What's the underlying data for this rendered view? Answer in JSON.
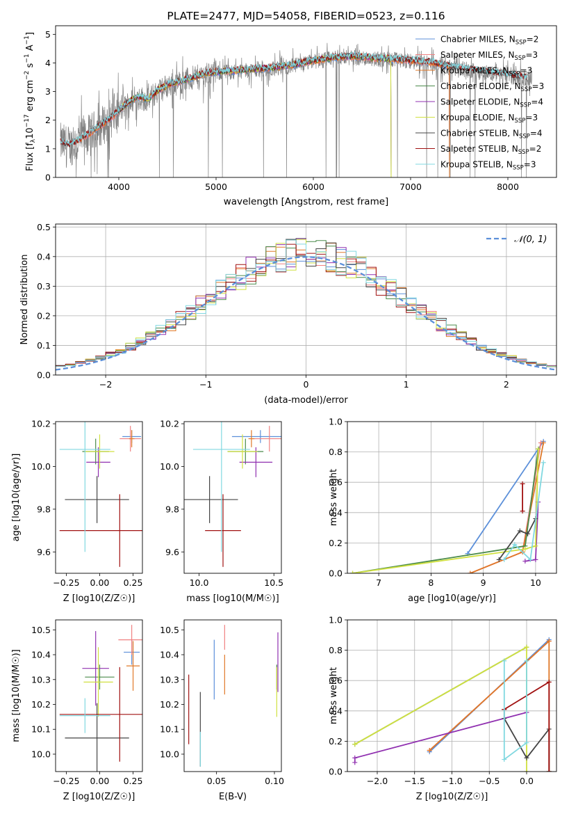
{
  "colors": {
    "chabrier_miles": "#5b8fd9",
    "salpeter_miles": "#f08080",
    "kroupa_miles": "#e07828",
    "chabrier_elodie": "#4a8a4a",
    "salpeter_elodie": "#9030b0",
    "kroupa_elodie": "#d0e040",
    "chabrier_stelib": "#444444",
    "salpeter_stelib": "#a01010",
    "kroupa_stelib": "#80d8e0",
    "spectrum": "#808080",
    "normal": "#5b8fd9"
  },
  "chart_data": [
    {
      "id": "spectrum",
      "type": "line",
      "title": "PLATE=2477, MJD=54058, FIBERID=0523, z=0.116",
      "xlabel": "wavelength [Angstrom, rest frame]",
      "ylabel": "Flux [f_λ 10^-17 erg cm^-2 s^-1 A^-1]",
      "xlim": [
        3350,
        8500
      ],
      "ylim": [
        0,
        5.3
      ],
      "xticks": [
        "4000",
        "5000",
        "6000",
        "7000",
        "8000"
      ],
      "yticks": [
        "0",
        "1",
        "2",
        "3",
        "4",
        "5"
      ],
      "continuum": {
        "x": [
          3400,
          3500,
          3600,
          3700,
          3800,
          3900,
          4000,
          4100,
          4200,
          4300,
          4400,
          4500,
          4600,
          4700,
          4800,
          4900,
          5000,
          5200,
          5400,
          5600,
          5800,
          6000,
          6200,
          6400,
          6600,
          6800,
          7000,
          7200,
          7400,
          7600,
          7800,
          8000,
          8200
        ],
        "y": [
          1.2,
          1.1,
          1.3,
          1.5,
          1.75,
          2.0,
          2.3,
          2.6,
          2.8,
          2.7,
          3.0,
          3.2,
          3.3,
          3.4,
          3.5,
          3.6,
          3.65,
          3.7,
          3.75,
          3.8,
          3.9,
          4.05,
          4.15,
          4.2,
          4.15,
          4.1,
          4.05,
          4.0,
          3.85,
          3.75,
          3.65,
          3.55,
          3.45
        ]
      },
      "legend": [
        {
          "key": "chabrier_miles",
          "label": "Chabrier MILES, N",
          "sub": "SSP",
          "suffix": "=2"
        },
        {
          "key": "salpeter_miles",
          "label": "Salpeter MILES, N",
          "sub": "SSP",
          "suffix": "=3"
        },
        {
          "key": "kroupa_miles",
          "label": "Kroupa MILES, N",
          "sub": "SSP",
          "suffix": "=3"
        },
        {
          "key": "chabrier_elodie",
          "label": "Chabrier ELODIE, N",
          "sub": "SSP",
          "suffix": "=3"
        },
        {
          "key": "salpeter_elodie",
          "label": "Salpeter ELODIE, N",
          "sub": "SSP",
          "suffix": "=4"
        },
        {
          "key": "kroupa_elodie",
          "label": "Kroupa ELODIE, N",
          "sub": "SSP",
          "suffix": "=3"
        },
        {
          "key": "chabrier_stelib",
          "label": "Chabrier STELIB, N",
          "sub": "SSP",
          "suffix": "=4"
        },
        {
          "key": "salpeter_stelib",
          "label": "Salpeter STELIB, N",
          "sub": "SSP",
          "suffix": "=2"
        },
        {
          "key": "kroupa_stelib",
          "label": "Kroupa STELIB, N",
          "sub": "SSP",
          "suffix": "=3"
        }
      ]
    },
    {
      "id": "residuals",
      "type": "line",
      "xlabel": "(data-model)/error",
      "ylabel": "Normed distribution",
      "xlim": [
        -2.5,
        2.5
      ],
      "ylim": [
        0,
        0.51
      ],
      "xticks": [
        "−2",
        "−1",
        "0",
        "1",
        "2"
      ],
      "yticks": [
        "0.0",
        "0.1",
        "0.2",
        "0.3",
        "0.4",
        "0.5"
      ],
      "legend": "𝒩(0, 1)",
      "grid": true
    },
    {
      "id": "age_vs_Z",
      "type": "scatter",
      "xlabel": "Z [log10(Z/Z☉)]",
      "ylabel": "age  [log10(age/yr)]",
      "xlim": [
        -0.33,
        0.32
      ],
      "ylim": [
        9.5,
        10.21
      ],
      "xticks": [
        "−0.25",
        "0.00",
        "0.25"
      ],
      "yticks": [
        "9.6",
        "9.8",
        "10.0",
        "10.2"
      ],
      "points": [
        {
          "key": "chabrier_miles",
          "x": 0.24,
          "y": 10.14,
          "xerr": 0.07,
          "yerr": 0.03
        },
        {
          "key": "salpeter_miles",
          "x": 0.23,
          "y": 10.13,
          "xerr": 0.08,
          "yerr": 0.06
        },
        {
          "key": "kroupa_miles",
          "x": 0.24,
          "y": 10.13,
          "xerr": 0.02,
          "yerr": 0.04
        },
        {
          "key": "chabrier_elodie",
          "x": -0.03,
          "y": 10.07,
          "xerr": 0.1,
          "yerr": 0.06
        },
        {
          "key": "salpeter_elodie",
          "x": -0.01,
          "y": 10.02,
          "xerr": 0.09,
          "yerr": 0.07
        },
        {
          "key": "kroupa_elodie",
          "x": 0.0,
          "y": 10.07,
          "xerr": 0.11,
          "yerr": 0.08
        },
        {
          "key": "chabrier_stelib",
          "x": -0.02,
          "y": 9.845,
          "xerr": 0.24,
          "yerr": 0.11
        },
        {
          "key": "salpeter_stelib",
          "x": 0.15,
          "y": 9.7,
          "xerr": 0.45,
          "yerr": 0.17
        },
        {
          "key": "kroupa_stelib",
          "x": -0.11,
          "y": 10.08,
          "xerr": 0.19,
          "yerr": 0.48
        }
      ]
    },
    {
      "id": "age_vs_mass",
      "type": "scatter",
      "xlabel": "mass [log10(M/M☉)]",
      "ylabel": "",
      "xlim": [
        9.9,
        10.55
      ],
      "ylim": [
        9.5,
        10.21
      ],
      "xticks": [
        "10.0",
        "10.5"
      ],
      "yticks": [
        "9.6",
        "9.8",
        "10.0",
        "10.2"
      ],
      "points": [
        {
          "key": "chabrier_miles",
          "x": 10.41,
          "y": 10.14,
          "xerr": 0.19,
          "yerr": 0.03
        },
        {
          "key": "salpeter_miles",
          "x": 10.47,
          "y": 10.13,
          "xerr": 0.12,
          "yerr": 0.06
        },
        {
          "key": "kroupa_miles",
          "x": 10.35,
          "y": 10.13,
          "xerr": 0.02,
          "yerr": 0.04
        },
        {
          "key": "chabrier_elodie",
          "x": 10.31,
          "y": 10.07,
          "xerr": 0.12,
          "yerr": 0.06
        },
        {
          "key": "salpeter_elodie",
          "x": 10.38,
          "y": 10.02,
          "xerr": 0.11,
          "yerr": 0.07
        },
        {
          "key": "kroupa_elodie",
          "x": 10.29,
          "y": 10.07,
          "xerr": 0.1,
          "yerr": 0.08
        },
        {
          "key": "chabrier_stelib",
          "x": 10.07,
          "y": 9.845,
          "xerr": 0.19,
          "yerr": 0.11
        },
        {
          "key": "salpeter_stelib",
          "x": 10.16,
          "y": 9.7,
          "xerr": 0.12,
          "yerr": 0.17
        },
        {
          "key": "kroupa_stelib",
          "x": 10.15,
          "y": 10.08,
          "xerr": 0.19,
          "yerr": 0.48
        }
      ]
    },
    {
      "id": "mass_weight_vs_age",
      "type": "line",
      "xlabel": "age  [log10(age/yr)]",
      "ylabel": "mass weight",
      "xlim": [
        6.4,
        10.4
      ],
      "ylim": [
        0,
        1
      ],
      "xticks": [
        "7",
        "8",
        "9",
        "10"
      ],
      "yticks": [
        "0.0",
        "0.2",
        "0.4",
        "0.6",
        "0.8",
        "1.0"
      ],
      "grid": true,
      "series": [
        {
          "key": "chabrier_miles",
          "x": [
            8.7,
            10.15
          ],
          "y": [
            0.13,
            0.87
          ]
        },
        {
          "key": "salpeter_miles",
          "x": [
            8.75,
            9.75,
            10.1
          ],
          "y": [
            0.0,
            0.14,
            0.86
          ]
        },
        {
          "key": "kroupa_miles",
          "x": [
            8.75,
            9.75,
            10.15
          ],
          "y": [
            0.0,
            0.14,
            0.86
          ]
        },
        {
          "key": "chabrier_elodie",
          "x": [
            6.5,
            9.8,
            10.05
          ],
          "y": [
            0.0,
            0.18,
            0.82
          ]
        },
        {
          "key": "salpeter_elodie",
          "x": [
            9.8,
            10.0,
            10.05
          ],
          "y": [
            0.08,
            0.09,
            0.47
          ]
        },
        {
          "key": "kroupa_elodie",
          "x": [
            6.5,
            9.8,
            10.0,
            10.05
          ],
          "y": [
            0.0,
            0.16,
            0.18,
            0.82
          ]
        },
        {
          "key": "chabrier_stelib",
          "x": [
            9.3,
            9.7,
            9.85,
            10.0
          ],
          "y": [
            0.09,
            0.28,
            0.26,
            0.36
          ]
        },
        {
          "key": "salpeter_stelib",
          "x": [
            9.75,
            9.75
          ],
          "y": [
            0.41,
            0.59
          ]
        },
        {
          "key": "kroupa_stelib",
          "x": [
            9.4,
            9.6,
            9.9,
            10.15
          ],
          "y": [
            0.09,
            0.19,
            0.09,
            0.73
          ]
        }
      ]
    },
    {
      "id": "mass_vs_Z",
      "type": "scatter",
      "xlabel": "Z [log10(Z/Z☉)]",
      "ylabel": "mass [log10(M/M☉)]",
      "xlim": [
        -0.33,
        0.32
      ],
      "ylim": [
        9.93,
        10.54
      ],
      "xticks": [
        "−0.25",
        "0.00",
        "0.25"
      ],
      "yticks": [
        "10.0",
        "10.1",
        "10.2",
        "10.3",
        "10.4",
        "10.5"
      ],
      "points": [
        {
          "key": "chabrier_miles",
          "x": 0.24,
          "y": 10.41,
          "xerr": 0.06,
          "yerr": 0.05
        },
        {
          "key": "salpeter_miles",
          "x": 0.24,
          "y": 10.46,
          "xerr": 0.1,
          "yerr": 0.06
        },
        {
          "key": "kroupa_miles",
          "x": 0.25,
          "y": 10.355,
          "xerr": 0.05,
          "yerr": 0.1
        },
        {
          "key": "chabrier_elodie",
          "x": 0.0,
          "y": 10.31,
          "xerr": 0.11,
          "yerr": 0.05
        },
        {
          "key": "salpeter_elodie",
          "x": -0.03,
          "y": 10.345,
          "xerr": 0.1,
          "yerr": 0.15
        },
        {
          "key": "kroupa_elodie",
          "x": -0.01,
          "y": 10.29,
          "xerr": 0.11,
          "yerr": 0.14
        },
        {
          "key": "chabrier_stelib",
          "x": -0.02,
          "y": 10.065,
          "xerr": 0.24,
          "yerr": 0.14
        },
        {
          "key": "salpeter_stelib",
          "x": 0.15,
          "y": 10.16,
          "xerr": 0.45,
          "yerr": 0.19
        },
        {
          "key": "kroupa_stelib",
          "x": -0.11,
          "y": 10.155,
          "xerr": 0.19,
          "yerr": 0.07
        }
      ]
    },
    {
      "id": "mass_vs_ebv",
      "type": "scatter",
      "xlabel": "E(B-V)",
      "ylabel": "",
      "xlim": [
        0.022,
        0.106
      ],
      "ylim": [
        9.93,
        10.54
      ],
      "xticks": [
        "0.05",
        "0.10"
      ],
      "yticks": [
        "10.0",
        "10.1",
        "10.2",
        "10.3",
        "10.4",
        "10.5"
      ],
      "points": [
        {
          "key": "chabrier_miles",
          "x": 0.048,
          "y": 10.34,
          "xerr": 0,
          "yerr": 0.12
        },
        {
          "key": "salpeter_miles",
          "x": 0.057,
          "y": 10.47,
          "xerr": 0,
          "yerr": 0.05
        },
        {
          "key": "kroupa_miles",
          "x": 0.057,
          "y": 10.32,
          "xerr": 0,
          "yerr": 0.08
        },
        {
          "key": "chabrier_elodie",
          "x": 0.102,
          "y": 10.31,
          "xerr": 0,
          "yerr": 0.05
        },
        {
          "key": "salpeter_elodie",
          "x": 0.103,
          "y": 10.37,
          "xerr": 0,
          "yerr": 0.12
        },
        {
          "key": "kroupa_elodie",
          "x": 0.102,
          "y": 10.25,
          "xerr": 0,
          "yerr": 0.1
        },
        {
          "key": "chabrier_stelib",
          "x": 0.036,
          "y": 10.1,
          "xerr": 0,
          "yerr": 0.15
        },
        {
          "key": "salpeter_stelib",
          "x": 0.026,
          "y": 10.18,
          "xerr": 0,
          "yerr": 0.14
        },
        {
          "key": "kroupa_stelib",
          "x": 0.036,
          "y": 10.02,
          "xerr": 0,
          "yerr": 0.07
        }
      ]
    },
    {
      "id": "mass_weight_vs_Z",
      "type": "line",
      "xlabel": "Z [log10(Z/Z☉)]",
      "ylabel": "mass weight",
      "xlim": [
        -2.4,
        0.4
      ],
      "ylim": [
        0,
        1
      ],
      "xticks": [
        "−2.0",
        "−1.5",
        "−1.0",
        "−0.5",
        "0.0"
      ],
      "yticks": [
        "0.0",
        "0.2",
        "0.4",
        "0.6",
        "0.8",
        "1.0"
      ],
      "grid": true,
      "series": [
        {
          "key": "chabrier_miles",
          "x": [
            -1.3,
            0.3
          ],
          "y": [
            0.13,
            0.87
          ]
        },
        {
          "key": "salpeter_miles",
          "x": [
            -1.3,
            0.3
          ],
          "y": [
            0.14,
            0.86
          ]
        },
        {
          "key": "kroupa_miles",
          "x": [
            -1.3,
            0.3,
            0.3
          ],
          "y": [
            0.14,
            0.86,
            0.0
          ]
        },
        {
          "key": "chabrier_elodie",
          "x": [
            -2.3,
            0.0
          ],
          "y": [
            0.18,
            0.82
          ]
        },
        {
          "key": "salpeter_elodie",
          "x": [
            -2.3,
            -2.3,
            0.0
          ],
          "y": [
            0.06,
            0.09,
            0.39
          ]
        },
        {
          "key": "kroupa_elodie",
          "x": [
            -2.3,
            0.0,
            0.0
          ],
          "y": [
            0.18,
            0.82,
            0.0
          ]
        },
        {
          "key": "chabrier_stelib",
          "x": [
            -0.3,
            -0.3,
            0.0,
            0.3,
            0.3
          ],
          "y": [
            0.41,
            0.35,
            0.09,
            0.28,
            0.0
          ]
        },
        {
          "key": "salpeter_stelib",
          "x": [
            -0.3,
            0.3,
            0.3
          ],
          "y": [
            0.41,
            0.59,
            0.0
          ]
        },
        {
          "key": "kroupa_stelib",
          "x": [
            -0.3,
            -0.3,
            0.0,
            0.0
          ],
          "y": [
            0.73,
            0.08,
            0.19,
            0.73
          ]
        }
      ]
    }
  ]
}
